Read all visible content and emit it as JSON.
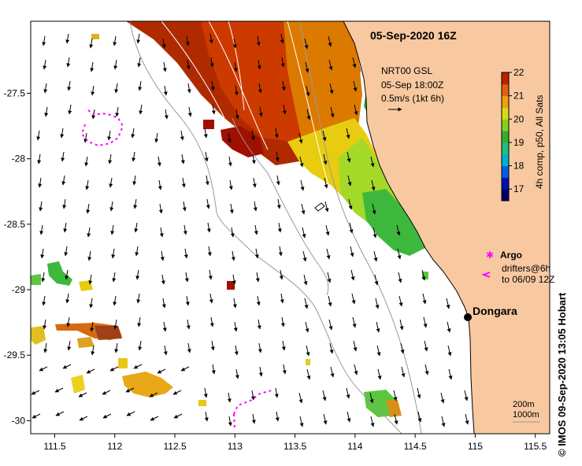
{
  "header": {
    "timestamp": "05-Sep-2020 16Z"
  },
  "current_info": {
    "line1": "NRT00 GSL",
    "line2": "05-Sep 18:00Z",
    "line3": "0.5m/s (1kt 6h)"
  },
  "colorbar": {
    "label": "4h comp, p50, All Sats",
    "min": 16.5,
    "max": 22,
    "ticks": [
      "22",
      "21",
      "20",
      "19",
      "18",
      "17"
    ],
    "tick_values": [
      22,
      21,
      20,
      19,
      18,
      17
    ]
  },
  "legend": {
    "argo": "Argo",
    "drifters_line1": "drifters@6h",
    "drifters_line2": "to 06/09 12Z"
  },
  "place": {
    "name": "Dongara",
    "lon": 114.93,
    "lat": -29.25
  },
  "isobaths": {
    "line1": "200m",
    "line2": "1000m"
  },
  "axes": {
    "x_ticks": [
      "111.5",
      "112",
      "112.5",
      "113",
      "113.5",
      "114",
      "114.5",
      "115",
      "115.5"
    ],
    "x_values": [
      111.5,
      112,
      112.5,
      113,
      113.5,
      114,
      114.5,
      115,
      115.5
    ],
    "y_ticks": [
      "-27.5",
      "-28",
      "-28.5",
      "-29",
      "-29.5",
      "-30"
    ],
    "y_values": [
      -27.5,
      -28,
      -28.5,
      -29,
      -29.5,
      -30
    ],
    "xlim": [
      111.3,
      115.62
    ],
    "ylim": [
      -30.1,
      -26.95
    ]
  },
  "credit": "© IMOS 09-Sep-2020 13:05 Hobart",
  "colors": {
    "land": "#f8c9a0",
    "coast": "#000000",
    "bathy": "#999999",
    "drifter": "#ff00ff",
    "sst_hot": "#a01000",
    "sst_cold": "#000080"
  }
}
